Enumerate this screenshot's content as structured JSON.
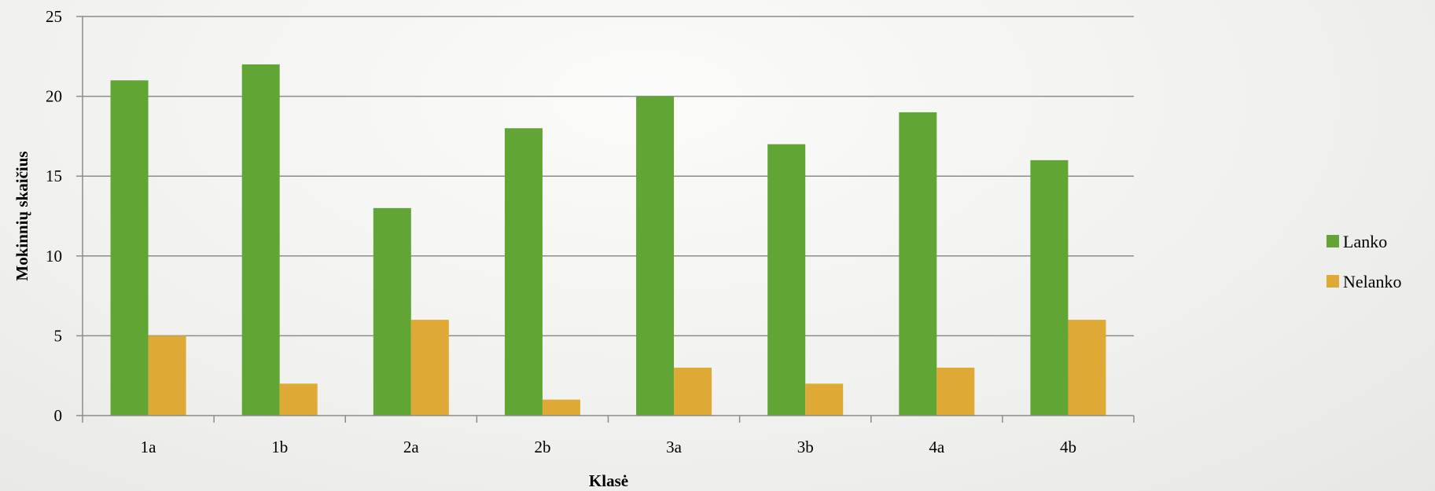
{
  "chart_data": {
    "type": "bar",
    "categories": [
      "1a",
      "1b",
      "2a",
      "2b",
      "3a",
      "3b",
      "4a",
      "4b"
    ],
    "series": [
      {
        "name": "Lanko",
        "color": "#61a534",
        "values": [
          21,
          22,
          13,
          18,
          20,
          17,
          19,
          16
        ]
      },
      {
        "name": "Nelanko",
        "color": "#dea935",
        "values": [
          5,
          2,
          6,
          1,
          3,
          2,
          3,
          6
        ]
      }
    ],
    "title": "",
    "xlabel": "Klasė",
    "ylabel": "Mokinnių skaičius",
    "ylim": [
      0,
      25
    ],
    "yticks": [
      0,
      5,
      10,
      15,
      20,
      25
    ],
    "grid": true,
    "legend_position": "right"
  }
}
